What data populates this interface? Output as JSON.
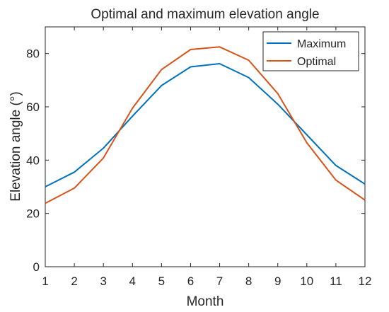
{
  "chart_data": {
    "type": "line",
    "title": "Optimal and maximum elevation angle",
    "xlabel": "Month",
    "ylabel": "Elevation angle (°)",
    "x": [
      1,
      2,
      3,
      4,
      5,
      6,
      7,
      8,
      9,
      10,
      11,
      12
    ],
    "xlim": [
      1,
      12
    ],
    "ylim": [
      0,
      90
    ],
    "xticks": [
      "1",
      "2",
      "3",
      "4",
      "5",
      "6",
      "7",
      "8",
      "9",
      "10",
      "11",
      "12"
    ],
    "yticks": [
      "0",
      "20",
      "40",
      "60",
      "80"
    ],
    "grid": false,
    "legend_position": "top-right",
    "series": [
      {
        "name": "Maximum",
        "color": "#0072BD",
        "values": [
          30.0,
          35.5,
          44.5,
          56.5,
          68.0,
          75.0,
          76.2,
          71.0,
          61.0,
          49.5,
          38.0,
          31.0
        ]
      },
      {
        "name": "Optimal",
        "color": "#D95319",
        "values": [
          23.8,
          29.5,
          40.8,
          59.5,
          74.0,
          81.5,
          82.5,
          77.5,
          65.0,
          46.5,
          32.5,
          25.0
        ]
      }
    ]
  }
}
